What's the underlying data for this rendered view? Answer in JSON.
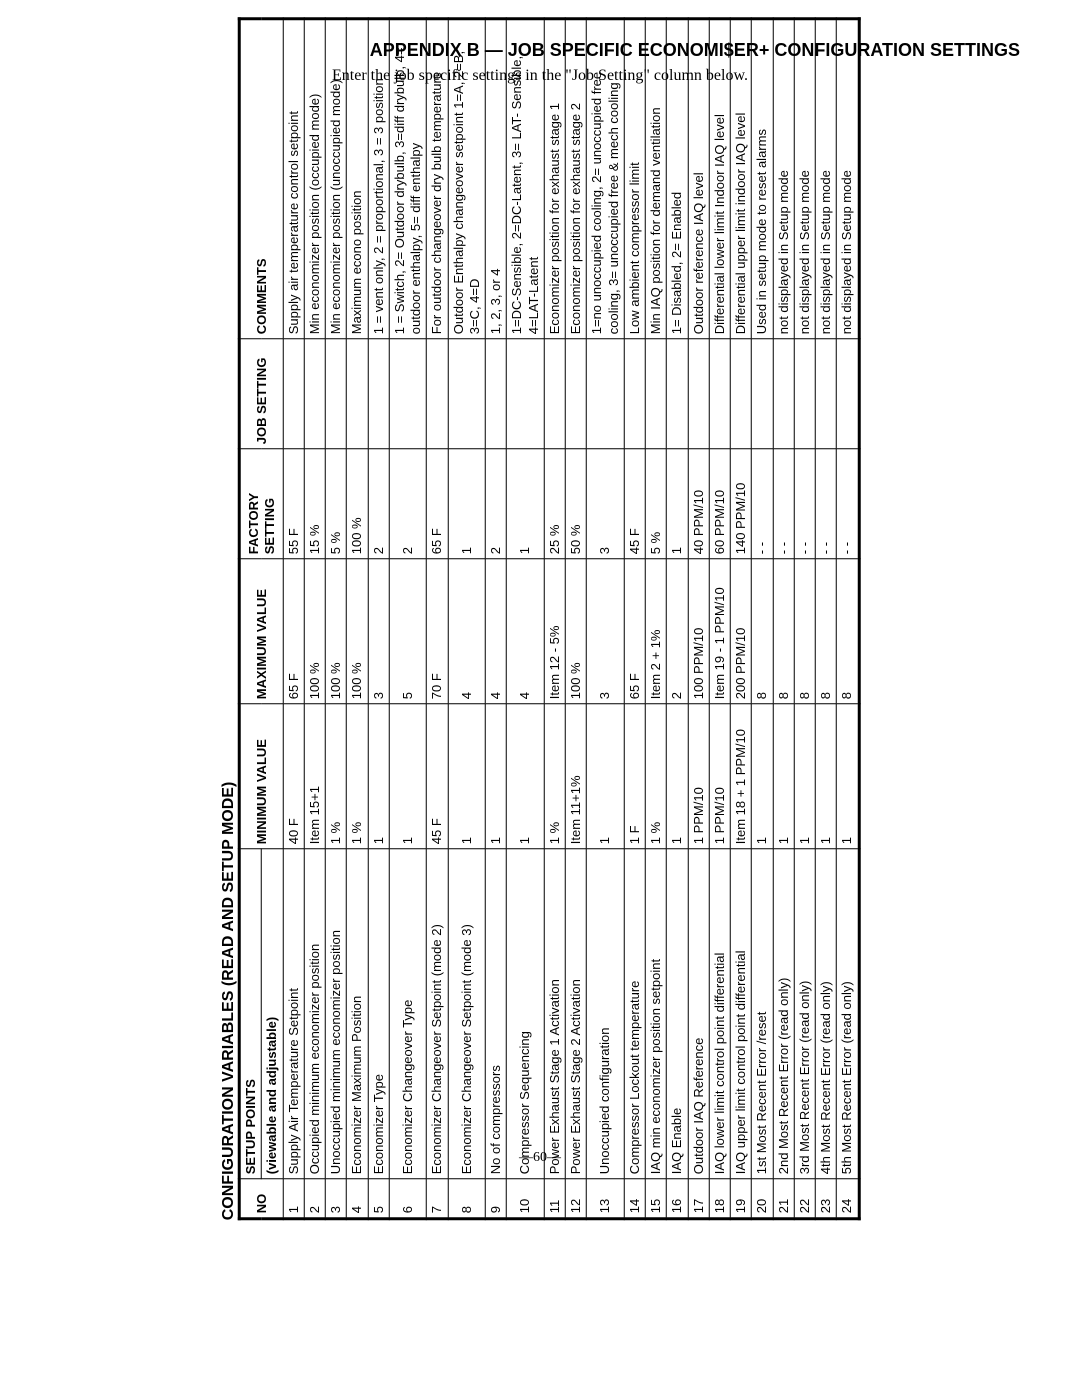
{
  "header": {
    "title": "APPENDIX B — JOB SPECIFIC ECONOMI$ER+ CONFIGURATION SETTINGS",
    "subtitle": "Enter the job specific settings in the \"Job Setting\" column below."
  },
  "footer": "—60—",
  "table": {
    "caption": "CONFIGURATION VARIABLES (READ AND SETUP MODE)",
    "columns": {
      "no": "NO",
      "setup": "SETUP  POINTS",
      "setup_sub": "(viewable and adjustable)",
      "min": "MINIMUM VALUE",
      "max": "MAXIMUM VALUE",
      "factory": "FACTORY SETTING",
      "job": "JOB SETTING",
      "comments": "COMMENTS"
    },
    "rows": [
      {
        "no": "1",
        "sp": "Supply Air Temperature Setpoint",
        "min": "40 F",
        "max": "65 F",
        "fac": "55 F",
        "job": "",
        "com": "Supply air temperature control setpoint"
      },
      {
        "no": "2",
        "sp": "Occupied minimum economizer position",
        "min": "Item 15+1",
        "max": "100 %",
        "fac": "15 %",
        "job": "",
        "com": "Min economizer position (occupied mode)"
      },
      {
        "no": "3",
        "sp": "Unoccupied minimum economizer position",
        "min": "1 %",
        "max": "100 %",
        "fac": "5 %",
        "job": "",
        "com": "Min economizer position (unoccupied mode)"
      },
      {
        "no": "4",
        "sp": "Economizer Maximum Position",
        "min": "1 %",
        "max": "100 %",
        "fac": "100 %",
        "job": "",
        "com": "Maximum econo position"
      },
      {
        "no": "5",
        "sp": "Economizer Type",
        "min": "1",
        "max": "3",
        "fac": "2",
        "job": "",
        "com": "1 = vent only, 2 = proportional, 3 = 3 position"
      },
      {
        "no": "6",
        "sp": "Economizer Changeover Type",
        "min": "1",
        "max": "5",
        "fac": "2",
        "job": "",
        "com": "1 = Switch, 2= Outdoor drybulb, 3=diff drybulb, 4= outdoor enthalpy, 5= diff enthalpy"
      },
      {
        "no": "7",
        "sp": "Economizer Changeover Setpoint (mode 2)",
        "min": "45 F",
        "max": "70 F",
        "fac": "65 F",
        "job": "",
        "com": "For outdoor changeover dry bulb temperature"
      },
      {
        "no": "8",
        "sp": "Economizer Changeover Setpoint (mode 3)",
        "min": "1",
        "max": "4",
        "fac": "1",
        "job": "",
        "com": "Outdoor Enthalpy changeover setpoint 1=A, 2=B, 3=C, 4=D"
      },
      {
        "no": "9",
        "sp": "No of compressors",
        "min": "1",
        "max": "4",
        "fac": "2",
        "job": "",
        "com": "1, 2, 3, or 4"
      },
      {
        "no": "10",
        "sp": "Compressor Sequencing",
        "min": "1",
        "max": "4",
        "fac": "1",
        "job": "",
        "com": "1=DC-Sensible, 2=DC-Latent, 3= LAT- Sensible, 4=LAT-Latent"
      },
      {
        "no": "11",
        "sp": "Power Exhaust Stage 1 Activation",
        "min": "1 %",
        "max": "Item 12 - 5%",
        "fac": "25 %",
        "job": "",
        "com": "Economizer position for exhaust stage 1"
      },
      {
        "no": "12",
        "sp": "Power Exhaust Stage 2 Activation",
        "min": "Item 11+1%",
        "max": "100 %",
        "fac": "50 %",
        "job": "",
        "com": "Economizer position for exhaust stage 2"
      },
      {
        "no": "13",
        "sp": "Unoccupied configuration",
        "min": "1",
        "max": "3",
        "fac": "3",
        "job": "",
        "com": "1=no unoccupied cooling, 2= unoccupied free cooling,  3= unoccupied free & mech cooling"
      },
      {
        "no": "14",
        "sp": "Compressor Lockout temperature",
        "min": "1 F",
        "max": "65 F",
        "fac": "45 F",
        "job": "",
        "com": "Low ambient compressor limit"
      },
      {
        "no": "15",
        "sp": "IAQ min economizer position setpoint",
        "min": "1 %",
        "max": "Item 2 + 1%",
        "fac": "5 %",
        "job": "",
        "com": "Min IAQ position for demand ventilation"
      },
      {
        "no": "16",
        "sp": "IAQ Enable",
        "min": "1",
        "max": "2",
        "fac": "1",
        "job": "",
        "com": "1= Disabled, 2= Enabled"
      },
      {
        "no": "17",
        "sp": "Outdoor IAQ Reference",
        "min": "1 PPM/10",
        "max": "100 PPM/10",
        "fac": "40 PPM/10",
        "job": "",
        "com": "Outdoor reference IAQ level"
      },
      {
        "no": "18",
        "sp": "IAQ lower limit control point differential",
        "min": "1 PPM/10",
        "max": "Item 19 - 1 PPM/10",
        "fac": "60 PPM/10",
        "job": "",
        "com": "Differential lower limit Indoor IAQ level"
      },
      {
        "no": "19",
        "sp": "IAQ upper limit control point differential",
        "min": "Item 18 + 1 PPM/10",
        "max": "200 PPM/10",
        "fac": "140 PPM/10",
        "job": "",
        "com": "Differential upper limit indoor IAQ level"
      },
      {
        "no": "20",
        "sp": "1st Most Recent Error /reset",
        "min": "1",
        "max": "8",
        "fac": "- -",
        "job": "",
        "com": "Used in setup mode to reset alarms"
      },
      {
        "no": "21",
        "sp": "2nd Most Recent Error (read only)",
        "min": "1",
        "max": "8",
        "fac": "- -",
        "job": "",
        "com": "not displayed in Setup mode"
      },
      {
        "no": "22",
        "sp": "3rd Most Recent Error (read only)",
        "min": "1",
        "max": "8",
        "fac": "- -",
        "job": "",
        "com": "not displayed in Setup mode"
      },
      {
        "no": "23",
        "sp": "4th Most Recent Error (read only)",
        "min": "1",
        "max": "8",
        "fac": "- -",
        "job": "",
        "com": "not displayed in Setup mode"
      },
      {
        "no": "24",
        "sp": "5th Most Recent Error (read only)",
        "min": "1",
        "max": "8",
        "fac": "- -",
        "job": "",
        "com": "not displayed in Setup mode"
      }
    ]
  }
}
